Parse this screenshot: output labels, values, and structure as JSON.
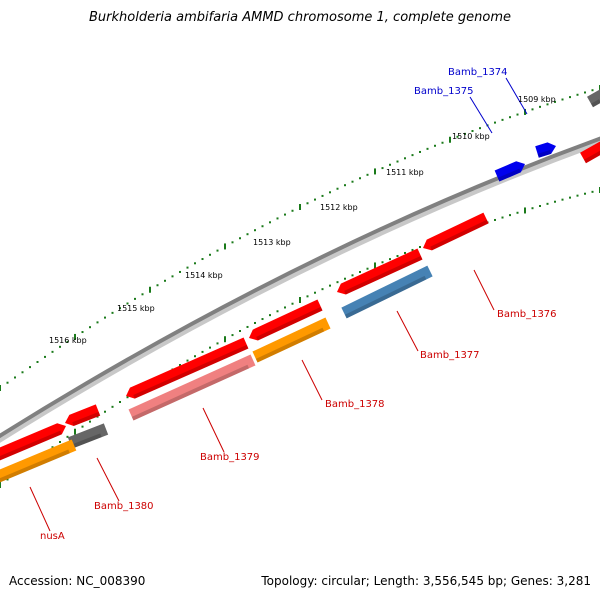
{
  "title": "Burkholderia ambifaria AMMD chromosome 1, complete genome",
  "footer": {
    "accession": "Accession: NC_008390",
    "summary": "Topology: circular; Length: 3,556,545 bp; Genes: 3,281"
  },
  "colors": {
    "backbone": "#808080",
    "ruler": "#1a7a1a",
    "label_red": "#cc0000",
    "label_blue": "#0000cc",
    "cds_red": "#ff0000",
    "cds_gray": "#666666",
    "cds_orange": "#ff9900",
    "cds_pink": "#f08080",
    "cds_steelblue": "#4682b4",
    "cds_blue": "#0000ee"
  },
  "tick_labels": [
    "1509 kbp",
    "1510 kbp",
    "1511 kbp",
    "1512 kbp",
    "1513 kbp",
    "1514 kbp",
    "1515 kbp",
    "1516 kbp"
  ],
  "gene_labels": [
    {
      "text": "Bamb_1374",
      "color": "blue"
    },
    {
      "text": "Bamb_1375",
      "color": "blue"
    },
    {
      "text": "Bamb_1376",
      "color": "red"
    },
    {
      "text": "Bamb_1377",
      "color": "red"
    },
    {
      "text": "Bamb_1378",
      "color": "red"
    },
    {
      "text": "Bamb_1379",
      "color": "red"
    },
    {
      "text": "Bamb_1380",
      "color": "red"
    },
    {
      "text": "nusA",
      "color": "red"
    }
  ]
}
